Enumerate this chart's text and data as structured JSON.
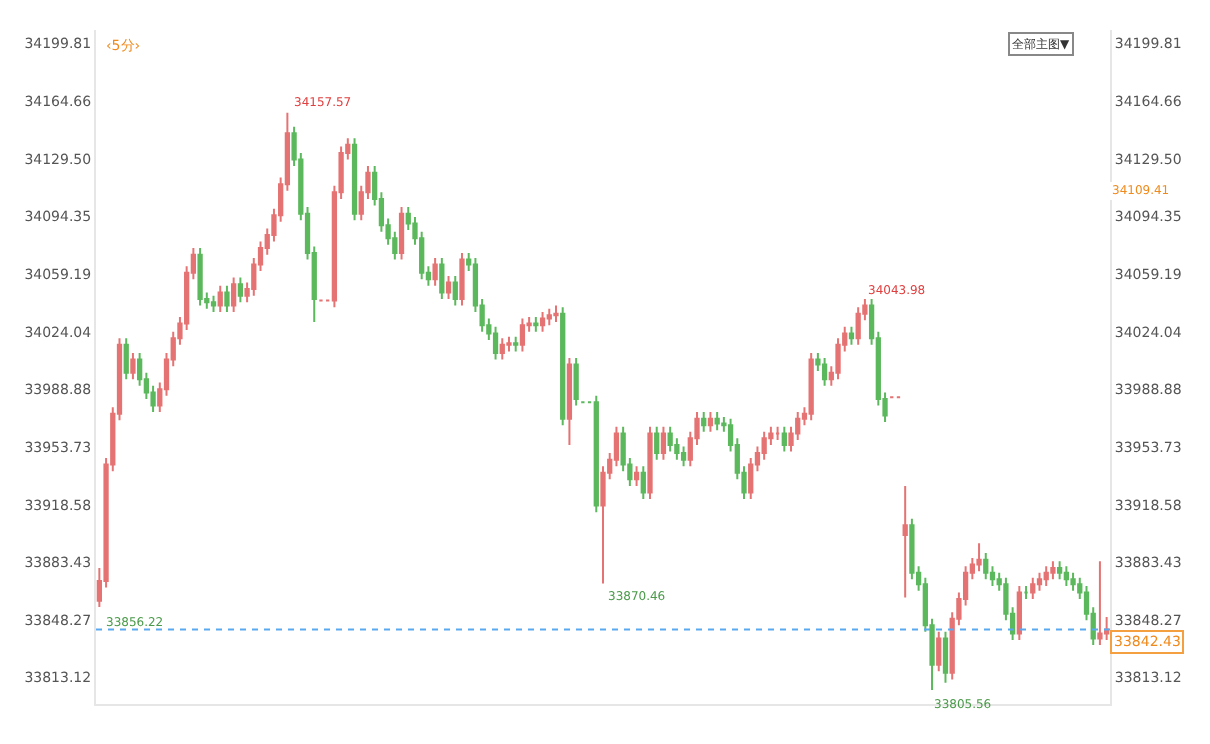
{
  "chart_data": {
    "type": "candlestick",
    "subtitle": "‹5分›",
    "categories": [
      null,
      null,
      null,
      null,
      null,
      null,
      null,
      null,
      null,
      null,
      null,
      null,
      null,
      null,
      null,
      null,
      null,
      null,
      null,
      null,
      null,
      null,
      null,
      null,
      null,
      null,
      null,
      null,
      null,
      null,
      null,
      null,
      null,
      null,
      null,
      null,
      null,
      null,
      null,
      null,
      null,
      null,
      null,
      null,
      null,
      null,
      null,
      null,
      null,
      null,
      null,
      null,
      null,
      null,
      null,
      null,
      null,
      null,
      null,
      null,
      null,
      null,
      null,
      null,
      null,
      null,
      null,
      null,
      null,
      null,
      null,
      null,
      null,
      null,
      null,
      null,
      null,
      null,
      null,
      null,
      null,
      null,
      null,
      null,
      null,
      null,
      null,
      null,
      null,
      null,
      null,
      null,
      null,
      null,
      null,
      null,
      null,
      null,
      null,
      null,
      null,
      null,
      null,
      null,
      null,
      null,
      null,
      null,
      null,
      null,
      null,
      null,
      null,
      null,
      null,
      null,
      null,
      null,
      null,
      null,
      null,
      null,
      null,
      null,
      null,
      null,
      null,
      null,
      null,
      null,
      null,
      null,
      null,
      null,
      null,
      null,
      null,
      null,
      null,
      null,
      null,
      null,
      null,
      null,
      null,
      null,
      null,
      null,
      null,
      null,
      null
    ],
    "ohlc": [
      [
        33860,
        33880,
        33856.22,
        33872
      ],
      [
        33872,
        33947,
        33868,
        33943
      ],
      [
        33943,
        33978,
        33939,
        33974
      ],
      [
        33974,
        34020,
        33970,
        34016
      ],
      [
        34016,
        34020,
        33995,
        33999
      ],
      [
        33999,
        34011,
        33995,
        34007
      ],
      [
        34007,
        34011,
        33991,
        33995
      ],
      [
        33995,
        33999,
        33983,
        33987
      ],
      [
        33987,
        33991,
        33975,
        33979
      ],
      [
        33979,
        33993,
        33975,
        33989
      ],
      [
        33989,
        34011,
        33985,
        34007
      ],
      [
        34007,
        34024,
        34003,
        34020
      ],
      [
        34020,
        34033,
        34016,
        34029
      ],
      [
        34029,
        34064,
        34025,
        34060
      ],
      [
        34060,
        34075,
        34056,
        34071
      ],
      [
        34071,
        34075,
        34040,
        34044
      ],
      [
        34044,
        34048,
        34038,
        34042
      ],
      [
        34042,
        34046,
        34036,
        34040
      ],
      [
        34040,
        34052,
        34036,
        34048
      ],
      [
        34048,
        34052,
        34036,
        34040
      ],
      [
        34040,
        34057,
        34036,
        34053
      ],
      [
        34053,
        34057,
        34042,
        34046
      ],
      [
        34046,
        34054,
        34042,
        34050
      ],
      [
        34050,
        34069,
        34046,
        34065
      ],
      [
        34065,
        34079,
        34061,
        34075
      ],
      [
        34075,
        34087,
        34071,
        34083
      ],
      [
        34083,
        34099,
        34079,
        34095
      ],
      [
        34095,
        34118,
        34091,
        34114
      ],
      [
        34114,
        34157.57,
        34110,
        34145
      ],
      [
        34145,
        34149,
        34125,
        34129
      ],
      [
        34129,
        34133,
        34092,
        34096
      ],
      [
        34096,
        34100,
        34068,
        34072
      ],
      [
        34072,
        34076,
        34030,
        34044
      ],
      [
        34043,
        34043,
        34043,
        34043
      ],
      [
        34043,
        34043,
        34043,
        34043
      ],
      [
        34043,
        34113,
        34039,
        34109
      ],
      [
        34109,
        34137,
        34105,
        34133
      ],
      [
        34133,
        34142,
        34129,
        34138
      ],
      [
        34138,
        34142,
        34092,
        34096
      ],
      [
        34096,
        34113,
        34092,
        34109
      ],
      [
        34109,
        34125,
        34105,
        34121
      ],
      [
        34121,
        34125,
        34101,
        34105
      ],
      [
        34105,
        34109,
        34085,
        34089
      ],
      [
        34089,
        34093,
        34077,
        34081
      ],
      [
        34081,
        34085,
        34068,
        34072
      ],
      [
        34072,
        34100,
        34068,
        34096
      ],
      [
        34096,
        34100,
        34086,
        34090
      ],
      [
        34090,
        34094,
        34077,
        34081
      ],
      [
        34081,
        34085,
        34056,
        34060
      ],
      [
        34060,
        34064,
        34052,
        34056
      ],
      [
        34056,
        34069,
        34052,
        34065
      ],
      [
        34065,
        34069,
        34044,
        34048
      ],
      [
        34048,
        34058,
        34044,
        34054
      ],
      [
        34054,
        34058,
        34040,
        34044
      ],
      [
        34044,
        34072,
        34040,
        34068
      ],
      [
        34068,
        34072,
        34061,
        34065
      ],
      [
        34065,
        34069,
        34036,
        34040
      ],
      [
        34040,
        34044,
        34024,
        34028
      ],
      [
        34028,
        34032,
        34019,
        34023
      ],
      [
        34023,
        34027,
        34007,
        34011
      ],
      [
        34011,
        34020,
        34007,
        34016
      ],
      [
        34016,
        34021,
        34012,
        34017
      ],
      [
        34017,
        34021,
        34012,
        34016
      ],
      [
        34016,
        34032,
        34012,
        34028
      ],
      [
        34028,
        34033,
        34024,
        34029
      ],
      [
        34029,
        34033,
        34024,
        34028
      ],
      [
        34028,
        34036,
        34024,
        34032
      ],
      [
        34032,
        34038,
        34028,
        34034
      ],
      [
        34034,
        34040,
        34030,
        34035
      ],
      [
        34035,
        34039,
        33967,
        33971
      ],
      [
        33971,
        34008,
        33955,
        34004
      ],
      [
        34004,
        34008,
        33979,
        33983
      ],
      [
        33981,
        33981,
        33981,
        33981
      ],
      [
        33981,
        33981,
        33981,
        33981
      ],
      [
        33981,
        33985,
        33914,
        33918
      ],
      [
        33918,
        33942,
        33870.46,
        33938
      ],
      [
        33938,
        33950,
        33934,
        33946
      ],
      [
        33946,
        33966,
        33942,
        33962
      ],
      [
        33962,
        33966,
        33939,
        33943
      ],
      [
        33943,
        33947,
        33930,
        33934
      ],
      [
        33934,
        33942,
        33930,
        33938
      ],
      [
        33938,
        33942,
        33922,
        33926
      ],
      [
        33926,
        33966,
        33922,
        33962
      ],
      [
        33962,
        33966,
        33946,
        33950
      ],
      [
        33950,
        33966,
        33946,
        33962
      ],
      [
        33962,
        33966,
        33951,
        33955
      ],
      [
        33955,
        33959,
        33946,
        33950
      ],
      [
        33950,
        33954,
        33942,
        33946
      ],
      [
        33946,
        33963,
        33942,
        33959
      ],
      [
        33959,
        33975,
        33955,
        33971
      ],
      [
        33971,
        33975,
        33963,
        33967
      ],
      [
        33967,
        33975,
        33963,
        33971
      ],
      [
        33971,
        33975,
        33964,
        33968
      ],
      [
        33968,
        33972,
        33963,
        33967
      ],
      [
        33967,
        33971,
        33951,
        33955
      ],
      [
        33955,
        33959,
        33934,
        33938
      ],
      [
        33938,
        33942,
        33922,
        33926
      ],
      [
        33926,
        33947,
        33922,
        33943
      ],
      [
        33943,
        33954,
        33939,
        33950
      ],
      [
        33950,
        33963,
        33946,
        33959
      ],
      [
        33959,
        33966,
        33955,
        33962
      ],
      [
        33962,
        33966,
        33958,
        33962
      ],
      [
        33962,
        33966,
        33951,
        33955
      ],
      [
        33955,
        33966,
        33951,
        33962
      ],
      [
        33962,
        33975,
        33958,
        33971
      ],
      [
        33971,
        33978,
        33967,
        33974
      ],
      [
        33974,
        34011,
        33970,
        34007
      ],
      [
        34007,
        34011,
        34000,
        34004
      ],
      [
        34004,
        34008,
        33991,
        33995
      ],
      [
        33995,
        34003,
        33991,
        33999
      ],
      [
        33999,
        34020,
        33995,
        34016
      ],
      [
        34016,
        34027,
        34012,
        34023
      ],
      [
        34023,
        34027,
        34016,
        34020
      ],
      [
        34020,
        34039,
        34016,
        34035
      ],
      [
        34035,
        34043.98,
        34031,
        34040
      ],
      [
        34040,
        34044,
        34016,
        34020
      ],
      [
        34020,
        34024,
        33979,
        33983
      ],
      [
        33983,
        33987,
        33969,
        33973
      ],
      [
        33984,
        33984,
        33984,
        33984
      ],
      [
        33984,
        33984,
        33984,
        33984
      ],
      [
        33900,
        33930,
        33862,
        33906
      ],
      [
        33906,
        33910,
        33873,
        33877
      ],
      [
        33877,
        33881,
        33866,
        33870
      ],
      [
        33870,
        33874,
        33841,
        33845
      ],
      [
        33845,
        33849,
        33805.56,
        33821
      ],
      [
        33821,
        33841,
        33817,
        33837
      ],
      [
        33837,
        33841,
        33810,
        33816
      ],
      [
        33816,
        33853,
        33812,
        33849
      ],
      [
        33849,
        33865,
        33845,
        33861
      ],
      [
        33861,
        33881,
        33857,
        33877
      ],
      [
        33877,
        33886,
        33873,
        33882
      ],
      [
        33882,
        33895,
        33878,
        33885
      ],
      [
        33885,
        33889,
        33873,
        33877
      ],
      [
        33877,
        33881,
        33869,
        33873
      ],
      [
        33873,
        33877,
        33866,
        33870
      ],
      [
        33870,
        33874,
        33848,
        33852
      ],
      [
        33852,
        33856,
        33836,
        33840
      ],
      [
        33840,
        33869,
        33836,
        33865
      ],
      [
        33865,
        33869,
        33861,
        33865
      ],
      [
        33865,
        33874,
        33861,
        33870
      ],
      [
        33870,
        33877,
        33866,
        33873
      ],
      [
        33873,
        33881,
        33869,
        33877
      ],
      [
        33877,
        33884,
        33873,
        33880
      ],
      [
        33880,
        33884,
        33873,
        33877
      ],
      [
        33877,
        33881,
        33869,
        33873
      ],
      [
        33873,
        33877,
        33866,
        33870
      ],
      [
        33870,
        33874,
        33861,
        33865
      ],
      [
        33865,
        33869,
        33848,
        33852
      ],
      [
        33852,
        33856,
        33833,
        33837
      ],
      [
        33837,
        33884,
        33833,
        33840
      ],
      [
        33840,
        33850,
        33836,
        33842.43
      ]
    ],
    "colors": [
      "#e57373",
      "#e57373",
      "#e57373",
      "#e57373",
      "#5cb85c",
      "#e57373",
      "#5cb85c",
      "#5cb85c",
      "#5cb85c",
      "#e57373",
      "#e57373",
      "#e57373",
      "#e57373",
      "#e57373",
      "#e57373",
      "#5cb85c",
      "#5cb85c",
      "#5cb85c",
      "#e57373",
      "#5cb85c",
      "#e57373",
      "#5cb85c",
      "#e57373",
      "#e57373",
      "#e57373",
      "#e57373",
      "#e57373",
      "#e57373",
      "#e57373",
      "#5cb85c",
      "#5cb85c",
      "#5cb85c",
      "#5cb85c",
      "#e57373",
      "#e57373",
      "#e57373",
      "#e57373",
      "#e57373",
      "#5cb85c",
      "#e57373",
      "#e57373",
      "#5cb85c",
      "#5cb85c",
      "#5cb85c",
      "#5cb85c",
      "#e57373",
      "#5cb85c",
      "#5cb85c",
      "#5cb85c",
      "#5cb85c",
      "#e57373",
      "#5cb85c",
      "#e57373",
      "#5cb85c",
      "#e57373",
      "#5cb85c",
      "#5cb85c",
      "#5cb85c",
      "#5cb85c",
      "#5cb85c",
      "#e57373",
      "#e57373",
      "#5cb85c",
      "#e57373",
      "#e57373",
      "#5cb85c",
      "#e57373",
      "#e57373",
      "#e57373",
      "#5cb85c",
      "#e57373",
      "#5cb85c",
      "#5cb85c",
      "#5cb85c",
      "#5cb85c",
      "#e57373",
      "#e57373",
      "#e57373",
      "#5cb85c",
      "#5cb85c",
      "#e57373",
      "#5cb85c",
      "#e57373",
      "#5cb85c",
      "#e57373",
      "#5cb85c",
      "#5cb85c",
      "#5cb85c",
      "#e57373",
      "#e57373",
      "#5cb85c",
      "#e57373",
      "#5cb85c",
      "#5cb85c",
      "#5cb85c",
      "#5cb85c",
      "#5cb85c",
      "#e57373",
      "#e57373",
      "#e57373",
      "#e57373",
      "#e57373",
      "#5cb85c",
      "#e57373",
      "#e57373",
      "#e57373",
      "#e57373",
      "#5cb85c",
      "#5cb85c",
      "#e57373",
      "#e57373",
      "#e57373",
      "#5cb85c",
      "#e57373",
      "#e57373",
      "#5cb85c",
      "#5cb85c",
      "#5cb85c",
      "#e57373",
      "#e57373",
      "#e57373",
      "#5cb85c",
      "#5cb85c",
      "#5cb85c",
      "#5cb85c",
      "#e57373",
      "#5cb85c",
      "#e57373",
      "#e57373",
      "#e57373",
      "#e57373",
      "#e57373",
      "#5cb85c",
      "#5cb85c",
      "#5cb85c",
      "#5cb85c",
      "#5cb85c",
      "#e57373",
      "#5cb85c",
      "#e57373",
      "#e57373",
      "#e57373",
      "#e57373",
      "#5cb85c",
      "#5cb85c",
      "#5cb85c",
      "#5cb85c",
      "#5cb85c",
      "#5cb85c",
      "#e57373",
      "#e57373"
    ],
    "ylim": [
      33797,
      34208
    ],
    "yticks": [
      34199.81,
      34164.66,
      {
        "value": 34129.5,
        "label": "34129.50"
      },
      34094.35,
      34059.19,
      34024.04,
      33988.88,
      33953.73,
      33918.58,
      33883.43,
      33848.27,
      33813.12
    ],
    "y2lim": [
      33797,
      34208
    ],
    "y2ticks": [
      34199.81,
      34164.66,
      {
        "value": 34129.5,
        "label": "34129.50"
      },
      34094.35,
      34059.19,
      34024.04,
      33988.88,
      33953.73,
      33918.58,
      33883.43,
      33848.27,
      33813.12
    ],
    "tick_labels": "y",
    "ref_lines": [
      {
        "axis": "y",
        "value": 33842.43,
        "label": "33842.43",
        "color": "#5aa9f0",
        "line_style": "dotted"
      }
    ],
    "annotations": [
      "全部主图▼",
      "34157.57",
      "33856.22",
      "33870.46",
      "34043.98",
      "33805.56",
      "34109.41"
    ]
  }
}
